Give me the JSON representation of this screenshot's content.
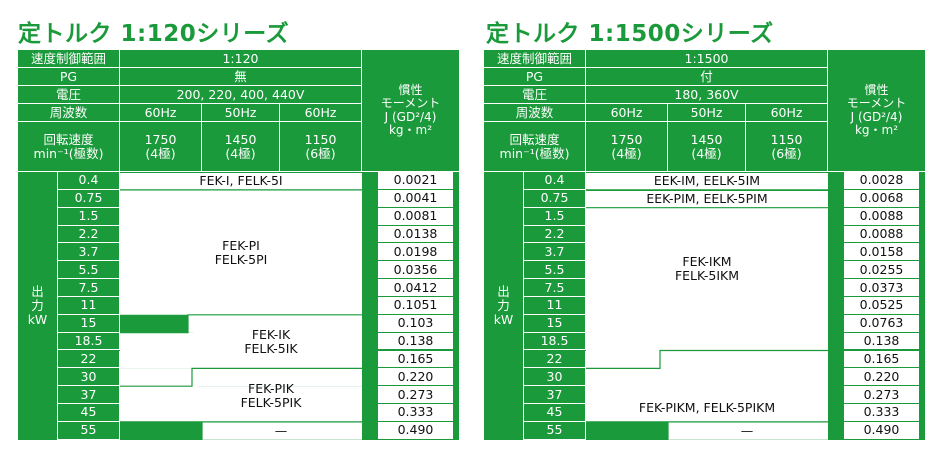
{
  "colors": {
    "brand_green": "#1a9a3a",
    "text": "#111111",
    "white": "#ffffff"
  },
  "labels": {
    "speed_range": "速度制御範囲",
    "pg": "PG",
    "voltage": "電圧",
    "frequency": "周波数",
    "rotation_line1": "回転速度",
    "rotation_line2": "min⁻¹(極数)",
    "inertia_lines": [
      "慣性",
      "モーメント",
      "J (GD²/4)",
      "kg・m²"
    ],
    "output_lines": [
      "出",
      "力",
      "kW"
    ]
  },
  "frequencies": [
    "60Hz",
    "50Hz",
    "60Hz"
  ],
  "speeds": [
    {
      "rpm": "1750",
      "poles": "(4極)"
    },
    {
      "rpm": "1450",
      "poles": "(4極)"
    },
    {
      "rpm": "1150",
      "poles": "(6極)"
    }
  ],
  "kw": [
    "0.4",
    "0.75",
    "1.5",
    "2.2",
    "3.7",
    "5.5",
    "7.5",
    "11",
    "15",
    "18.5",
    "22",
    "30",
    "37",
    "45",
    "55"
  ],
  "left": {
    "title": "定トルク 1:120シリーズ",
    "speed_range": "1:120",
    "pg": "無",
    "voltage": "200, 220, 400, 440V",
    "models": [
      {
        "lines": [
          "FEK-I, FELK-5I"
        ]
      },
      {
        "lines": [
          "FEK-PI",
          "FELK-5PI"
        ]
      },
      {
        "lines": [
          "FEK-IK",
          "FELK-5IK"
        ]
      },
      {
        "lines": [
          "FEK-PIK",
          "FELK-5PIK"
        ]
      },
      {
        "lines": [
          "—"
        ]
      }
    ],
    "inertia": [
      "0.0021",
      "0.0041",
      "0.0081",
      "0.0138",
      "0.0198",
      "0.0356",
      "0.0412",
      "0.1051",
      "0.103",
      "0.138",
      "0.165",
      "0.220",
      "0.273",
      "0.333",
      "0.490"
    ]
  },
  "right": {
    "title": "定トルク 1:1500シリーズ",
    "speed_range": "1:1500",
    "pg": "付",
    "voltage": "180, 360V",
    "models": [
      {
        "lines": [
          "EEK-IM, EELK-5IM"
        ]
      },
      {
        "lines": [
          "EEK-PIM, EELK-5PIM"
        ]
      },
      {
        "lines": [
          "FEK-IKM",
          "FELK-5IKM"
        ]
      },
      {
        "lines": [
          "FEK-PIKM, FELK-5PIKM"
        ]
      },
      {
        "lines": [
          "—"
        ]
      }
    ],
    "inertia": [
      "0.0028",
      "0.0068",
      "0.0088",
      "0.0088",
      "0.0158",
      "0.0255",
      "0.0373",
      "0.0525",
      "0.0763",
      "0.138",
      "0.165",
      "0.220",
      "0.273",
      "0.333",
      "0.490"
    ]
  }
}
